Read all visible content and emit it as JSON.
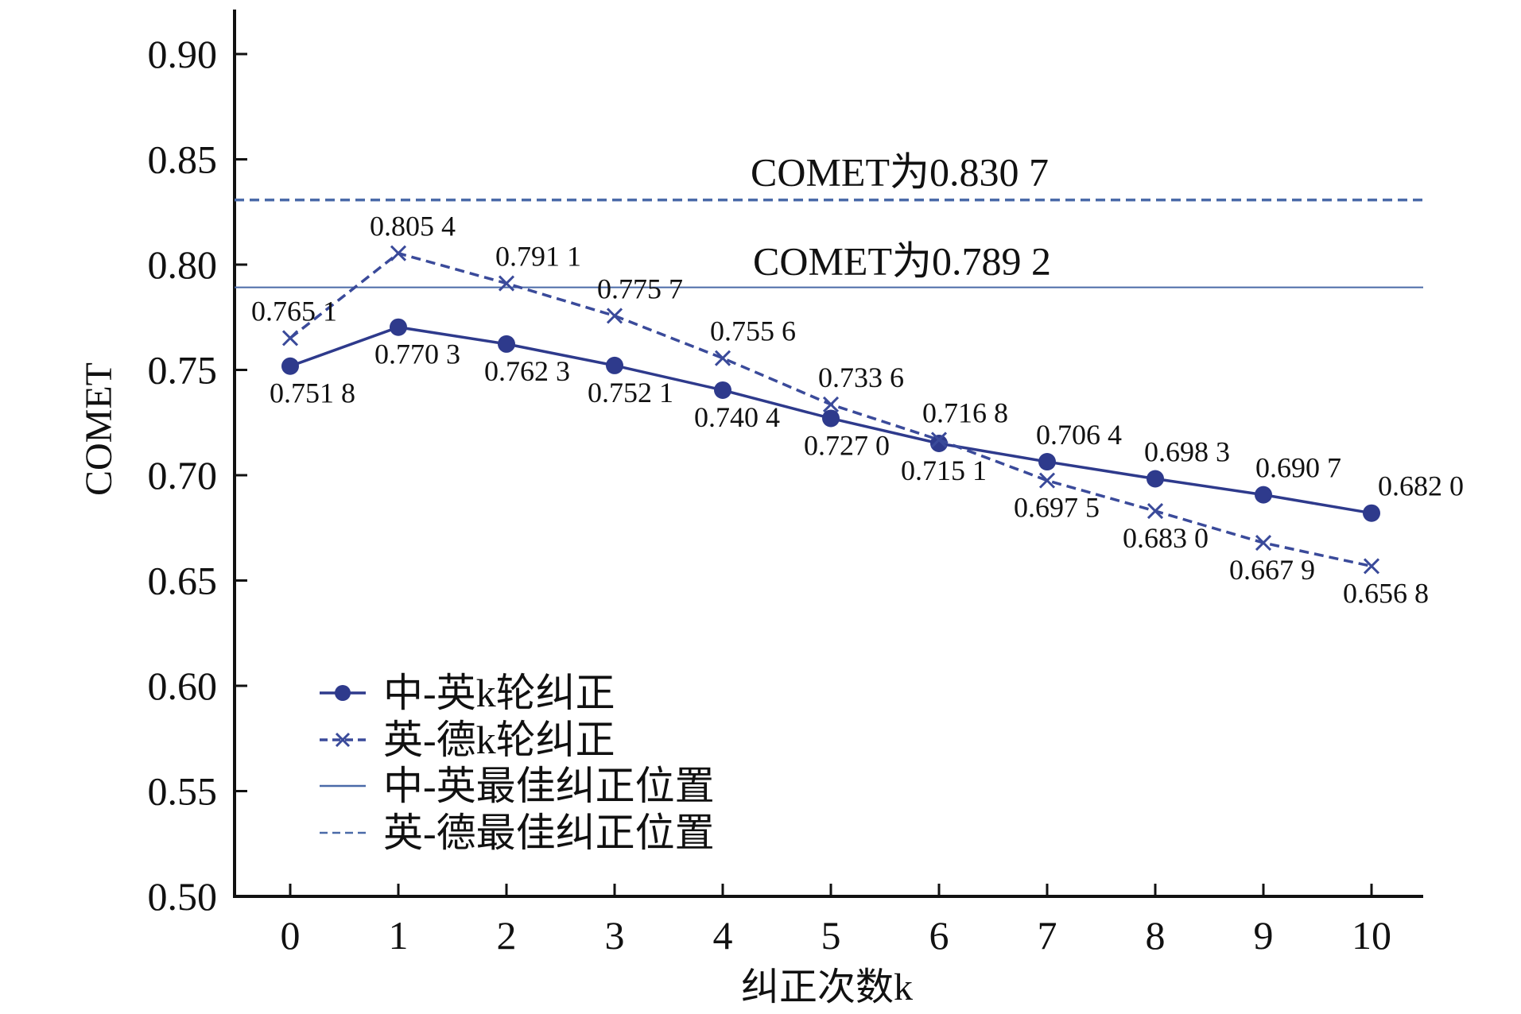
{
  "chart_data": {
    "type": "line",
    "title": "",
    "xlabel": "纠正次数k",
    "ylabel": "COMET",
    "x": [
      0,
      1,
      2,
      3,
      4,
      5,
      6,
      7,
      8,
      9,
      10
    ],
    "x_tick_labels": [
      "0",
      "1",
      "2",
      "3",
      "4",
      "5",
      "6",
      "7",
      "8",
      "9",
      "10"
    ],
    "ylim": [
      0.5,
      0.92
    ],
    "y_ticks": [
      0.5,
      0.55,
      0.6,
      0.65,
      0.7,
      0.75,
      0.8,
      0.85,
      0.9
    ],
    "y_tick_labels": [
      "0.50",
      "0.55",
      "0.60",
      "0.65",
      "0.70",
      "0.75",
      "0.80",
      "0.85",
      "0.90"
    ],
    "grid": false,
    "legend_position": "bottom-left",
    "series": [
      {
        "name": "中-英k轮纠正",
        "style": "solid",
        "marker": "circle",
        "color": "#2e3a8c",
        "values": [
          0.7518,
          0.7703,
          0.7623,
          0.7521,
          0.7404,
          0.727,
          0.7151,
          0.7064,
          0.6983,
          0.6907,
          0.682
        ],
        "labels": [
          "0.751 8",
          "0.770 3",
          "0.762 3",
          "0.752 1",
          "0.740 4",
          "0.727 0",
          "0.715 1",
          "0.706 4",
          "0.698 3",
          "0.690 7",
          "0.682 0"
        ]
      },
      {
        "name": "英-德k轮纠正",
        "style": "dashed",
        "marker": "x",
        "color": "#3a4a9a",
        "values": [
          0.7651,
          0.8054,
          0.7911,
          0.7757,
          0.7556,
          0.7336,
          0.7168,
          0.6975,
          0.683,
          0.6679,
          0.6568
        ],
        "labels": [
          "0.765 1",
          "0.805 4",
          "0.791 1",
          "0.775 7",
          "0.755 6",
          "0.733 6",
          "0.716 8",
          "0.697 5",
          "0.683 0",
          "0.667 9",
          "0.656 8"
        ]
      }
    ],
    "reference_lines": [
      {
        "name": "中-英最佳纠正位置",
        "value": 0.7892,
        "style": "solid",
        "color": "#4a6aa8",
        "label": "COMET为0.789 2"
      },
      {
        "name": "英-德最佳纠正位置",
        "value": 0.8307,
        "style": "dashed",
        "color": "#4a6aa8",
        "label": "COMET为0.830 7"
      }
    ]
  }
}
